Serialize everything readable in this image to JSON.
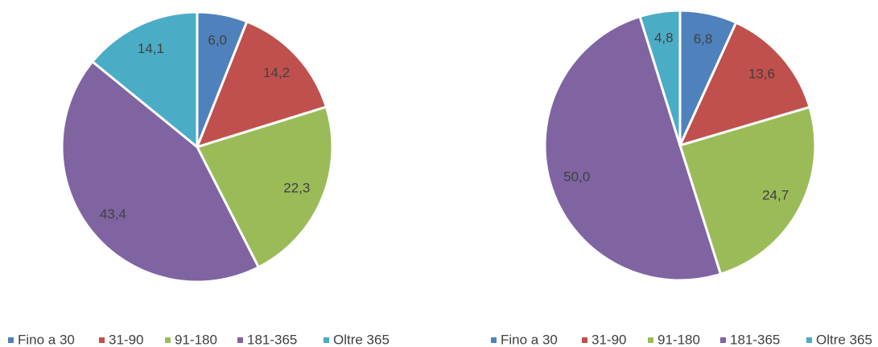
{
  "chart_data": [
    {
      "type": "pie",
      "categories": [
        "Fino a 30",
        "31-90",
        "91-180",
        "181-365",
        "Oltre 365"
      ],
      "values": [
        6.0,
        14.2,
        22.3,
        43.4,
        14.1
      ],
      "value_labels": [
        "6,0",
        "14,2",
        "22,3",
        "43,4",
        "14,1"
      ],
      "colors": [
        "#4f81bd",
        "#c0504d",
        "#9bbb59",
        "#8064a2",
        "#4bacc6"
      ]
    },
    {
      "type": "pie",
      "categories": [
        "Fino a 30",
        "31-90",
        "91-180",
        "181-365",
        "Oltre 365"
      ],
      "values": [
        6.8,
        13.6,
        24.7,
        50.0,
        4.8
      ],
      "value_labels": [
        "6,8",
        "13,6",
        "24,7",
        "50,0",
        "4,8"
      ],
      "colors": [
        "#4f81bd",
        "#c0504d",
        "#9bbb59",
        "#8064a2",
        "#4bacc6"
      ]
    }
  ]
}
